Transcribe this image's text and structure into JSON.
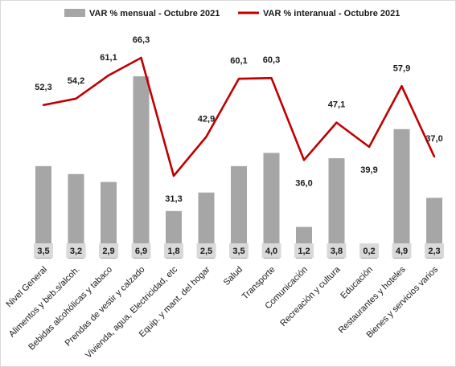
{
  "chart_data": {
    "type": "bar",
    "categories": [
      "Nivel General",
      "Alimentos y beb.s/alcoh.",
      "Bebidas alcohólicas y tabaco",
      "Prendas de vestir y calzado",
      "Vivienda, agua, Electricidad, etc",
      "Equip. y mant. del hogar",
      "Salud",
      "Transporte",
      "Comunicación",
      "Recreación y cultura",
      "Educación",
      "Restaurantes y hoteles",
      "Bienes y servicios varios"
    ],
    "series": [
      {
        "name": "VAR % mensual - Octubre 2021",
        "type": "bar",
        "color": "#a6a6a6",
        "values": [
          3.5,
          3.2,
          2.9,
          6.9,
          1.8,
          2.5,
          3.5,
          4.0,
          1.2,
          3.8,
          0.2,
          4.9,
          2.3
        ],
        "labels": [
          "3,5",
          "3,2",
          "2,9",
          "6,9",
          "1,8",
          "2,5",
          "3,5",
          "4,0",
          "1,2",
          "3,8",
          "0,2",
          "4,9",
          "2,3"
        ]
      },
      {
        "name": "VAR % interanual - Octubre 2021",
        "type": "line",
        "color": "#c00000",
        "values": [
          52.3,
          54.2,
          61.1,
          66.3,
          31.3,
          42.9,
          60.1,
          60.3,
          36.0,
          47.1,
          39.9,
          57.9,
          37.0
        ],
        "labels": [
          "52,3",
          "54,2",
          "61,1",
          "66,3",
          "31,3",
          "42,9",
          "60,1",
          "60,3",
          "36,0",
          "47,1",
          "39,9",
          "57,9",
          "37,0"
        ]
      }
    ],
    "label_positions": [
      "above",
      "above",
      "above",
      "above",
      "below",
      "above",
      "above",
      "above",
      "below",
      "above",
      "below",
      "above",
      "above"
    ],
    "legend_position": "top",
    "grid": false
  }
}
